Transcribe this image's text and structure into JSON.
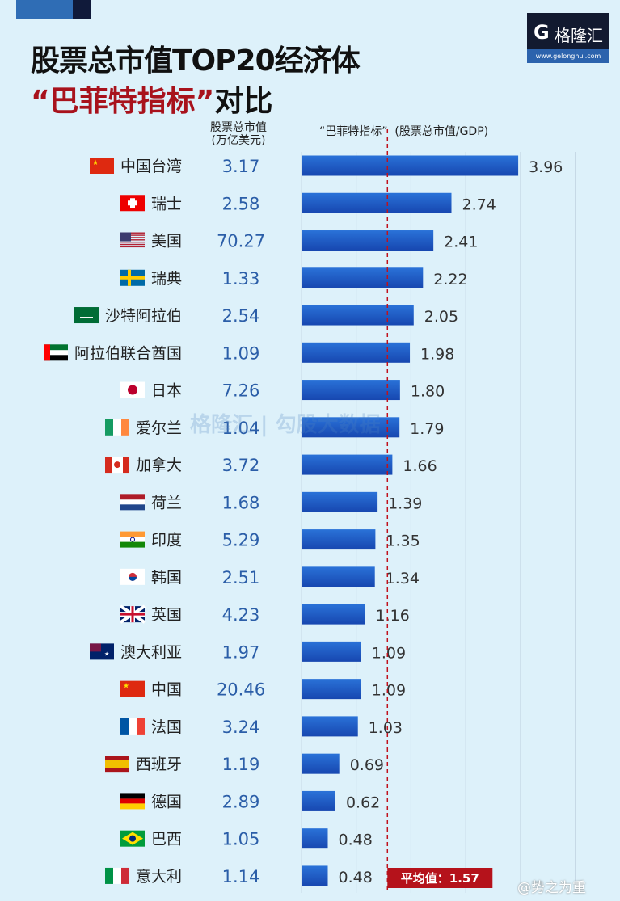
{
  "title_line1": "股票总市值TOP20经济体",
  "title_line2_red": "“巴菲特指标”",
  "title_line2_black": "对比",
  "logo": {
    "mark": "G",
    "name": "格隆汇",
    "url": "www.gelonghui.com"
  },
  "column_header_value": "股票总市值",
  "column_header_unit": "(万亿美元)",
  "column_header_ratio": "“巴菲特指标”  (股票总市值/GDP)",
  "watermark": "格隆汇 | 勾股大数据",
  "weibo": "@势之为重",
  "chart_data": {
    "type": "bar",
    "orientation": "horizontal",
    "categories": [
      "中国台湾",
      "瑞士",
      "美国",
      "瑞典",
      "沙特阿拉伯",
      "阿拉伯联合酋国",
      "日本",
      "爱尔兰",
      "加拿大",
      "荷兰",
      "印度",
      "韩国",
      "英国",
      "澳大利亚",
      "中国",
      "法国",
      "西班牙",
      "德国",
      "巴西",
      "意大利"
    ],
    "market_cap": [
      "3.17",
      "2.58",
      "70.27",
      "1.33",
      "2.54",
      "1.09",
      "7.26",
      "1.04",
      "3.72",
      "1.68",
      "5.29",
      "2.51",
      "4.23",
      "1.97",
      "20.46",
      "3.24",
      "1.19",
      "2.89",
      "1.05",
      "1.14"
    ],
    "values": [
      3.96,
      2.74,
      2.41,
      2.22,
      2.05,
      1.98,
      1.8,
      1.79,
      1.66,
      1.39,
      1.35,
      1.34,
      1.16,
      1.09,
      1.09,
      1.03,
      0.69,
      0.62,
      0.48,
      0.48
    ],
    "value_labels": [
      "3.96",
      "2.74",
      "2.41",
      "2.22",
      "2.05",
      "1.98",
      "1.80",
      "1.79",
      "1.66",
      "1.39",
      "1.35",
      "1.34",
      "1.16",
      "1.09",
      "1.09",
      "1.03",
      "0.69",
      "0.62",
      "0.48",
      "0.48"
    ],
    "flags": [
      "cn",
      "ch",
      "us",
      "se",
      "sa",
      "ae",
      "jp",
      "ie",
      "ca",
      "nl",
      "in",
      "kr",
      "gb",
      "au",
      "cn",
      "fr",
      "es",
      "de",
      "br",
      "it"
    ],
    "xlim": [
      0,
      5
    ],
    "grid": true,
    "average": 1.57,
    "average_label": "平均值：1.57",
    "colors": {
      "bar": "#1f5fc8",
      "market_cap": "#2b5ea8",
      "average": "#c0121c"
    }
  }
}
